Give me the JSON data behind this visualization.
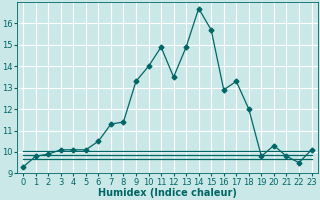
{
  "xlabel": "Humidex (Indice chaleur)",
  "background_color": "#cbe8e8",
  "grid_color": "#b0d8d8",
  "line_color": "#006666",
  "x_values": [
    0,
    1,
    2,
    3,
    4,
    5,
    6,
    7,
    8,
    9,
    10,
    11,
    12,
    13,
    14,
    15,
    16,
    17,
    18,
    19,
    20,
    21,
    22,
    23
  ],
  "y_main": [
    9.3,
    9.8,
    9.9,
    10.1,
    10.1,
    10.1,
    10.5,
    11.3,
    11.4,
    13.3,
    14.0,
    14.9,
    13.5,
    14.9,
    16.7,
    15.7,
    12.9,
    13.3,
    12.0,
    9.8,
    10.3,
    9.8,
    9.5,
    10.1
  ],
  "y_flat1": [
    10.05,
    10.05,
    10.05,
    10.05,
    10.05,
    10.05,
    10.05,
    10.05,
    10.05,
    10.05,
    10.05,
    10.05,
    10.05,
    10.05,
    10.05,
    10.05,
    10.05,
    10.05,
    10.05,
    10.05,
    10.05,
    10.05,
    10.05,
    10.05
  ],
  "y_flat2": [
    9.85,
    9.85,
    9.85,
    9.85,
    9.85,
    9.85,
    9.85,
    9.85,
    9.85,
    9.85,
    9.85,
    9.85,
    9.85,
    9.85,
    9.85,
    9.85,
    9.85,
    9.85,
    9.85,
    9.85,
    9.85,
    9.85,
    9.85,
    9.85
  ],
  "y_flat3": [
    9.65,
    9.65,
    9.65,
    9.65,
    9.65,
    9.65,
    9.65,
    9.65,
    9.65,
    9.65,
    9.65,
    9.65,
    9.65,
    9.65,
    9.65,
    9.65,
    9.65,
    9.65,
    9.65,
    9.65,
    9.65,
    9.65,
    9.65,
    9.65
  ],
  "xlim": [
    -0.5,
    23.5
  ],
  "ylim": [
    9.0,
    17.0
  ],
  "yticks": [
    9,
    10,
    11,
    12,
    13,
    14,
    15,
    16
  ],
  "xticks": [
    0,
    1,
    2,
    3,
    4,
    5,
    6,
    7,
    8,
    9,
    10,
    11,
    12,
    13,
    14,
    15,
    16,
    17,
    18,
    19,
    20,
    21,
    22,
    23
  ],
  "xtick_labels": [
    "0",
    "1",
    "2",
    "3",
    "4",
    "5",
    "6",
    "7",
    "8",
    "9",
    "10",
    "11",
    "12",
    "13",
    "14",
    "15",
    "16",
    "17",
    "18",
    "19",
    "20",
    "21",
    "22",
    "23"
  ],
  "marker": "D",
  "markersize": 2.5,
  "linewidth": 0.9,
  "xlabel_fontsize": 7,
  "tick_fontsize": 6
}
